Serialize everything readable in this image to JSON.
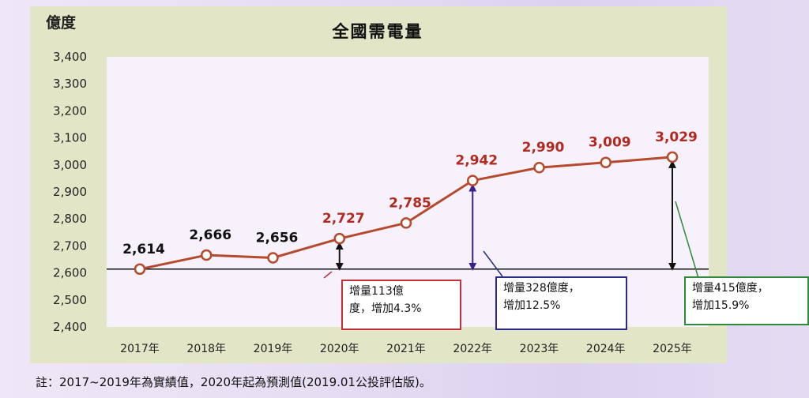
{
  "chart_data": {
    "type": "line",
    "title": "全國需電量",
    "ylabel": "億度",
    "categories": [
      "2017年",
      "2018年",
      "2019年",
      "2020年",
      "2021年",
      "2022年",
      "2023年",
      "2024年",
      "2025年"
    ],
    "values": [
      2614,
      2666,
      2656,
      2727,
      2785,
      2942,
      2990,
      3009,
      3029
    ],
    "value_labels": [
      "2,614",
      "2,666",
      "2,656",
      "2,727",
      "2,785",
      "2,942",
      "2,990",
      "3,009",
      "3,029"
    ],
    "yticks": [
      2400,
      2500,
      2600,
      2700,
      2800,
      2900,
      3000,
      3100,
      3200,
      3300,
      3400
    ],
    "ytick_labels": [
      "2,400",
      "2,500",
      "2,600",
      "2,700",
      "2,800",
      "2,900",
      "3,000",
      "3,100",
      "3,200",
      "3,300",
      "3,400"
    ],
    "ylim": [
      2400,
      3400
    ],
    "baseline": 2614,
    "grid": false,
    "colors": {
      "line": "#b54a2c",
      "marker_fill": "#ffffff",
      "label_early": "#111111",
      "label_late": "#b22a1f",
      "plot_bg": "#f7f1fc",
      "frame_bg": "#e3e6c6"
    },
    "annotations": [
      {
        "year_index": 3,
        "text_line1": "增量113億",
        "text_line2": "度，增加4.3%",
        "border": "#c0303a",
        "arrow": "#111111"
      },
      {
        "year_index": 5,
        "text_line1": "增量328億度，",
        "text_line2": "增加12.5%",
        "border": "#2b2a8a",
        "arrow": "#3a1f8f"
      },
      {
        "year_index": 8,
        "text_line1": "增量415億度，",
        "text_line2": "增加15.9%",
        "border": "#2f8a3a",
        "arrow": "#111111"
      }
    ]
  },
  "footnote": "註：2017~2019年為實績值，2020年起為預測值(2019.01公投評估版)。"
}
